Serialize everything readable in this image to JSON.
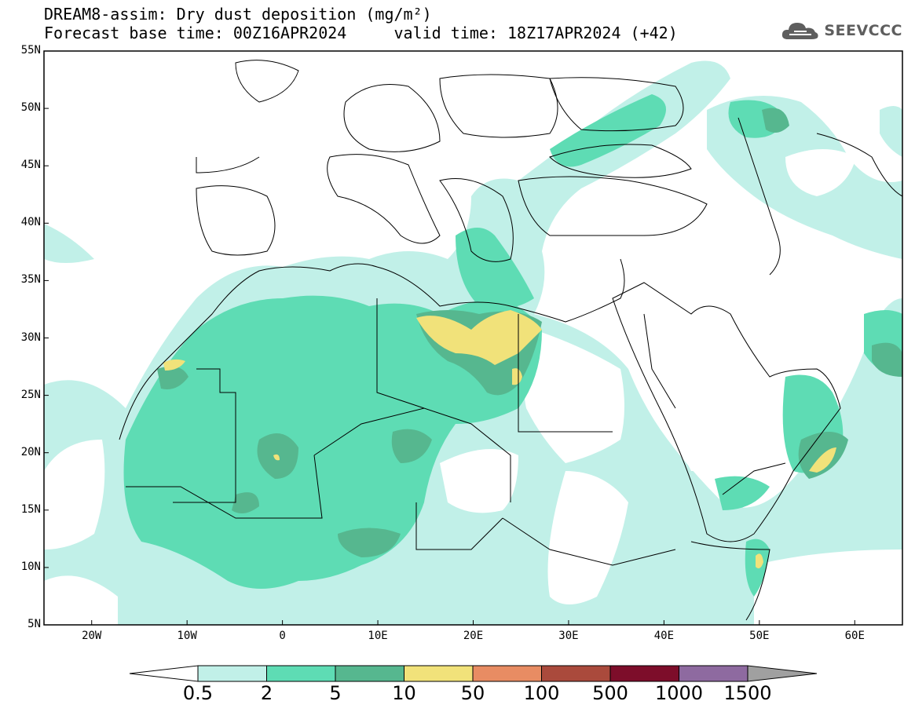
{
  "title": {
    "line1": "DREAM8-assim: Dry dust deposition (mg/m²)",
    "line2": "Forecast base time: 00Z16APR2024     valid time: 18Z17APR2024 (+42)"
  },
  "logo": {
    "icon": "cloud-icon",
    "text": "SEEVCCC"
  },
  "map": {
    "projection": "lat-lon",
    "lon_range": [
      -25,
      65
    ],
    "lat_range": [
      5,
      55
    ],
    "lat_ticks": [
      "55N",
      "50N",
      "45N",
      "40N",
      "35N",
      "30N",
      "25N",
      "20N",
      "15N",
      "10N",
      "5N"
    ],
    "lon_ticks": [
      "20W",
      "10W",
      "0",
      "10E",
      "20E",
      "30E",
      "40E",
      "50E",
      "60E"
    ]
  },
  "colorbar": {
    "labels": [
      "0.5",
      "2",
      "5",
      "10",
      "50",
      "100",
      "500",
      "1000",
      "1500"
    ],
    "colors": [
      "#c1f0e8",
      "#5edcb4",
      "#56b78f",
      "#f1e27a",
      "#e88c63",
      "#aa4a3c",
      "#7d0d2a",
      "#8e6aa0",
      "#a0a0a0"
    ],
    "under_color": "#ffffff",
    "over_color": "#a0a0a0"
  }
}
